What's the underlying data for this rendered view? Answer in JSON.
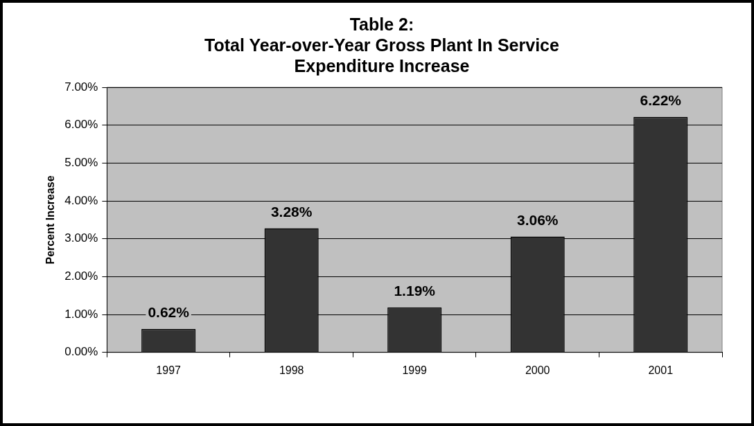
{
  "chart_data": {
    "type": "bar",
    "title": "Table 2:\nTotal Year-over-Year Gross Plant In Service\nExpenditure Increase",
    "ylabel": "Percent Increase",
    "categories": [
      "1997",
      "1998",
      "1999",
      "2000",
      "2001"
    ],
    "series": [
      {
        "color": "#333333",
        "values": [
          0.62,
          3.28,
          1.19,
          3.06,
          6.22
        ],
        "value_labels": [
          "0.62%",
          "3.28%",
          "1.19%",
          "3.06%",
          "6.22%"
        ]
      }
    ],
    "ylim": [
      0,
      7
    ],
    "yticks": [
      {
        "value": 0,
        "label": "0.00%"
      },
      {
        "value": 1,
        "label": "1.00%"
      },
      {
        "value": 2,
        "label": "2.00%"
      },
      {
        "value": 3,
        "label": "3.00%"
      },
      {
        "value": 4,
        "label": "4.00%"
      },
      {
        "value": 5,
        "label": "5.00%"
      },
      {
        "value": 6,
        "label": "6.00%"
      },
      {
        "value": 7,
        "label": "7.00%"
      }
    ],
    "grid": "y",
    "legend": false
  }
}
